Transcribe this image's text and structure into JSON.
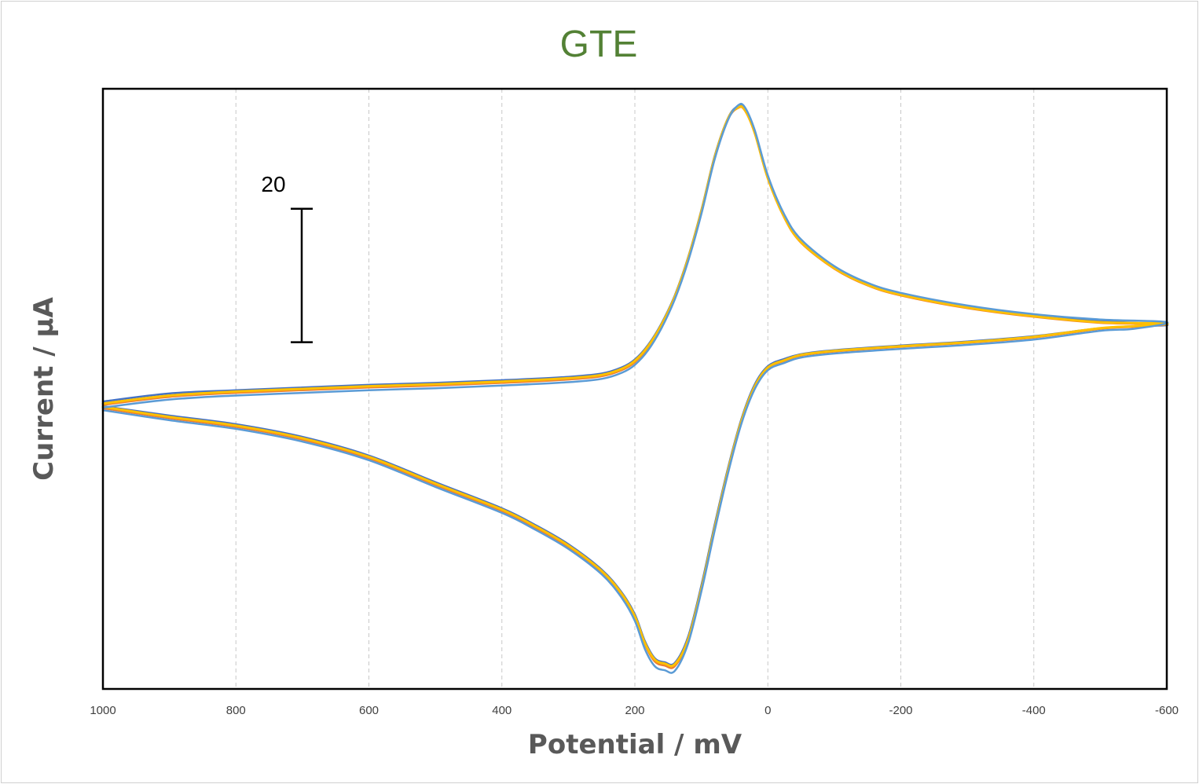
{
  "chart_data": {
    "type": "line",
    "title": "GTE",
    "xlabel": "Potential / mV",
    "ylabel": "Current / µA",
    "xlim": [
      1000,
      -600
    ],
    "x_axis_reversed": true,
    "x_ticks": [
      1000,
      800,
      600,
      400,
      200,
      0,
      -200,
      -400,
      -600
    ],
    "ylim": [
      -58,
      32
    ],
    "y_tick_labels_shown": false,
    "grid": {
      "vertical": "dashed",
      "horizontal": false
    },
    "legend": "none",
    "scale_bar": {
      "label": "20",
      "value": 20,
      "from": 14,
      "to": -6
    },
    "colors": {
      "title": "#538135",
      "axis_title": "#595959",
      "tick_label": "#404040"
    },
    "series": [
      {
        "color": "#4472c4",
        "stroke": 2.5,
        "points": [
          [
            1000,
            -14.9
          ],
          [
            900,
            -13.7
          ],
          [
            800,
            -13.2
          ],
          [
            700,
            -12.8
          ],
          [
            600,
            -12.4
          ],
          [
            500,
            -12.1
          ],
          [
            400,
            -11.7
          ],
          [
            300,
            -11.2
          ],
          [
            250,
            -10.7
          ],
          [
            220,
            -9.8
          ],
          [
            200,
            -8.6
          ],
          [
            180,
            -6.4
          ],
          [
            160,
            -3.2
          ],
          [
            140,
            1.0
          ],
          [
            120,
            6.7
          ],
          [
            100,
            13.8
          ],
          [
            80,
            21.9
          ],
          [
            60,
            27.6
          ],
          [
            45,
            29.4
          ],
          [
            35,
            29.1
          ],
          [
            20,
            25.7
          ],
          [
            0,
            18.8
          ],
          [
            -25,
            12.9
          ],
          [
            -50,
            9.2
          ],
          [
            -100,
            5.3
          ],
          [
            -150,
            2.8
          ],
          [
            -200,
            1.3
          ],
          [
            -300,
            -0.6
          ],
          [
            -400,
            -1.9
          ],
          [
            -500,
            -2.8
          ],
          [
            -600,
            -3.4
          ],
          [
            -550,
            -3.6
          ],
          [
            -500,
            -3.9
          ],
          [
            -400,
            -5.1
          ],
          [
            -300,
            -5.9
          ],
          [
            -200,
            -6.5
          ],
          [
            -100,
            -7.2
          ],
          [
            -50,
            -7.8
          ],
          [
            -25,
            -8.5
          ],
          [
            0,
            -9.6
          ],
          [
            20,
            -12.4
          ],
          [
            40,
            -17.6
          ],
          [
            60,
            -24.9
          ],
          [
            80,
            -33.4
          ],
          [
            100,
            -42.5
          ],
          [
            120,
            -50.2
          ],
          [
            140,
            -54.1
          ],
          [
            155,
            -54.0
          ],
          [
            170,
            -53.4
          ],
          [
            185,
            -50.8
          ],
          [
            200,
            -46.8
          ],
          [
            220,
            -43.5
          ],
          [
            250,
            -40.1
          ],
          [
            300,
            -36.3
          ],
          [
            350,
            -33.4
          ],
          [
            400,
            -30.9
          ],
          [
            500,
            -27.0
          ],
          [
            600,
            -23.0
          ],
          [
            700,
            -20.2
          ],
          [
            800,
            -18.3
          ],
          [
            900,
            -17.0
          ],
          [
            1000,
            -15.6
          ]
        ]
      },
      {
        "color": "#ed7d31",
        "stroke": 2.5,
        "points": [
          [
            1000,
            -15.4
          ],
          [
            900,
            -14.2
          ],
          [
            800,
            -13.6
          ],
          [
            700,
            -13.2
          ],
          [
            600,
            -12.8
          ],
          [
            500,
            -12.5
          ],
          [
            400,
            -12.1
          ],
          [
            300,
            -11.6
          ],
          [
            250,
            -11.1
          ],
          [
            220,
            -10.2
          ],
          [
            200,
            -9.0
          ],
          [
            180,
            -6.8
          ],
          [
            160,
            -3.5
          ],
          [
            140,
            0.7
          ],
          [
            120,
            6.4
          ],
          [
            100,
            13.5
          ],
          [
            80,
            21.6
          ],
          [
            60,
            27.4
          ],
          [
            45,
            29.1
          ],
          [
            35,
            28.8
          ],
          [
            20,
            25.4
          ],
          [
            0,
            18.5
          ],
          [
            -25,
            12.6
          ],
          [
            -50,
            8.9
          ],
          [
            -100,
            5.0
          ],
          [
            -150,
            2.5
          ],
          [
            -200,
            1.0
          ],
          [
            -300,
            -0.9
          ],
          [
            -400,
            -2.2
          ],
          [
            -500,
            -3.1
          ],
          [
            -600,
            -3.3
          ],
          [
            -550,
            -3.7
          ],
          [
            -500,
            -4.0
          ],
          [
            -400,
            -5.3
          ],
          [
            -300,
            -6.1
          ],
          [
            -200,
            -6.7
          ],
          [
            -100,
            -7.4
          ],
          [
            -50,
            -8.0
          ],
          [
            -25,
            -8.8
          ],
          [
            0,
            -9.9
          ],
          [
            20,
            -12.8
          ],
          [
            40,
            -18.0
          ],
          [
            60,
            -25.4
          ],
          [
            80,
            -34.0
          ],
          [
            100,
            -43.1
          ],
          [
            120,
            -50.8
          ],
          [
            140,
            -54.6
          ],
          [
            155,
            -54.5
          ],
          [
            170,
            -53.9
          ],
          [
            185,
            -51.3
          ],
          [
            200,
            -47.3
          ],
          [
            220,
            -43.9
          ],
          [
            250,
            -40.5
          ],
          [
            300,
            -36.7
          ],
          [
            350,
            -33.8
          ],
          [
            400,
            -31.3
          ],
          [
            500,
            -27.4
          ],
          [
            600,
            -23.4
          ],
          [
            700,
            -20.6
          ],
          [
            800,
            -18.7
          ],
          [
            900,
            -17.4
          ],
          [
            1000,
            -15.9
          ]
        ]
      },
      {
        "color": "#ffc000",
        "stroke": 3,
        "points": [
          [
            1000,
            -15.2
          ],
          [
            900,
            -14.0
          ],
          [
            800,
            -13.4
          ],
          [
            700,
            -13.0
          ],
          [
            600,
            -12.6
          ],
          [
            500,
            -12.3
          ],
          [
            400,
            -11.9
          ],
          [
            300,
            -11.4
          ],
          [
            250,
            -10.9
          ],
          [
            220,
            -10.0
          ],
          [
            200,
            -8.8
          ],
          [
            180,
            -6.6
          ],
          [
            160,
            -3.4
          ],
          [
            140,
            0.8
          ],
          [
            120,
            6.5
          ],
          [
            100,
            13.6
          ],
          [
            80,
            21.7
          ],
          [
            60,
            27.5
          ],
          [
            45,
            29.2
          ],
          [
            35,
            28.9
          ],
          [
            20,
            25.5
          ],
          [
            0,
            18.6
          ],
          [
            -25,
            12.7
          ],
          [
            -50,
            9.0
          ],
          [
            -100,
            5.1
          ],
          [
            -150,
            2.6
          ],
          [
            -200,
            1.1
          ],
          [
            -300,
            -0.8
          ],
          [
            -400,
            -2.1
          ],
          [
            -500,
            -3.0
          ],
          [
            -600,
            -3.2
          ],
          [
            -550,
            -3.6
          ],
          [
            -500,
            -3.9
          ],
          [
            -400,
            -5.2
          ],
          [
            -300,
            -6.0
          ],
          [
            -200,
            -6.6
          ],
          [
            -100,
            -7.3
          ],
          [
            -50,
            -7.9
          ],
          [
            -25,
            -8.7
          ],
          [
            0,
            -9.8
          ],
          [
            20,
            -12.7
          ],
          [
            40,
            -17.9
          ],
          [
            60,
            -25.3
          ],
          [
            80,
            -33.9
          ],
          [
            100,
            -43.0
          ],
          [
            120,
            -50.6
          ],
          [
            140,
            -54.3
          ],
          [
            155,
            -54.2
          ],
          [
            170,
            -53.6
          ],
          [
            185,
            -51.1
          ],
          [
            200,
            -47.1
          ],
          [
            220,
            -43.7
          ],
          [
            250,
            -40.3
          ],
          [
            300,
            -36.5
          ],
          [
            350,
            -33.6
          ],
          [
            400,
            -31.1
          ],
          [
            500,
            -27.2
          ],
          [
            600,
            -23.2
          ],
          [
            700,
            -20.4
          ],
          [
            800,
            -18.5
          ],
          [
            900,
            -17.2
          ],
          [
            1000,
            -15.7
          ]
        ]
      },
      {
        "color": "#5b9bd5",
        "stroke": 2.5,
        "points": [
          [
            1000,
            -15.8
          ],
          [
            900,
            -14.6
          ],
          [
            800,
            -14.0
          ],
          [
            700,
            -13.6
          ],
          [
            600,
            -13.2
          ],
          [
            500,
            -12.9
          ],
          [
            400,
            -12.5
          ],
          [
            300,
            -12.0
          ],
          [
            250,
            -11.5
          ],
          [
            220,
            -10.6
          ],
          [
            200,
            -9.4
          ],
          [
            180,
            -7.2
          ],
          [
            160,
            -3.9
          ],
          [
            140,
            0.4
          ],
          [
            120,
            6.1
          ],
          [
            100,
            13.2
          ],
          [
            80,
            21.4
          ],
          [
            60,
            27.3
          ],
          [
            45,
            29.5
          ],
          [
            35,
            29.3
          ],
          [
            20,
            25.9
          ],
          [
            0,
            19.0
          ],
          [
            -25,
            13.1
          ],
          [
            -50,
            9.4
          ],
          [
            -100,
            5.4
          ],
          [
            -150,
            2.9
          ],
          [
            -200,
            1.4
          ],
          [
            -300,
            -0.5
          ],
          [
            -400,
            -1.8
          ],
          [
            -500,
            -2.6
          ],
          [
            -600,
            -3.0
          ],
          [
            -550,
            -4.0
          ],
          [
            -500,
            -4.3
          ],
          [
            -400,
            -5.6
          ],
          [
            -300,
            -6.4
          ],
          [
            -200,
            -7.0
          ],
          [
            -100,
            -7.7
          ],
          [
            -50,
            -8.3
          ],
          [
            -25,
            -9.1
          ],
          [
            0,
            -10.2
          ],
          [
            20,
            -13.1
          ],
          [
            40,
            -18.3
          ],
          [
            60,
            -25.7
          ],
          [
            80,
            -34.3
          ],
          [
            100,
            -43.4
          ],
          [
            120,
            -51.2
          ],
          [
            140,
            -55.3
          ],
          [
            155,
            -55.2
          ],
          [
            170,
            -54.6
          ],
          [
            185,
            -52.0
          ],
          [
            200,
            -47.8
          ],
          [
            220,
            -44.3
          ],
          [
            250,
            -40.8
          ],
          [
            300,
            -37.0
          ],
          [
            350,
            -34.1
          ],
          [
            400,
            -31.6
          ],
          [
            500,
            -27.7
          ],
          [
            600,
            -23.7
          ],
          [
            700,
            -20.9
          ],
          [
            800,
            -19.0
          ],
          [
            900,
            -17.7
          ],
          [
            1000,
            -16.2
          ]
        ]
      }
    ]
  }
}
